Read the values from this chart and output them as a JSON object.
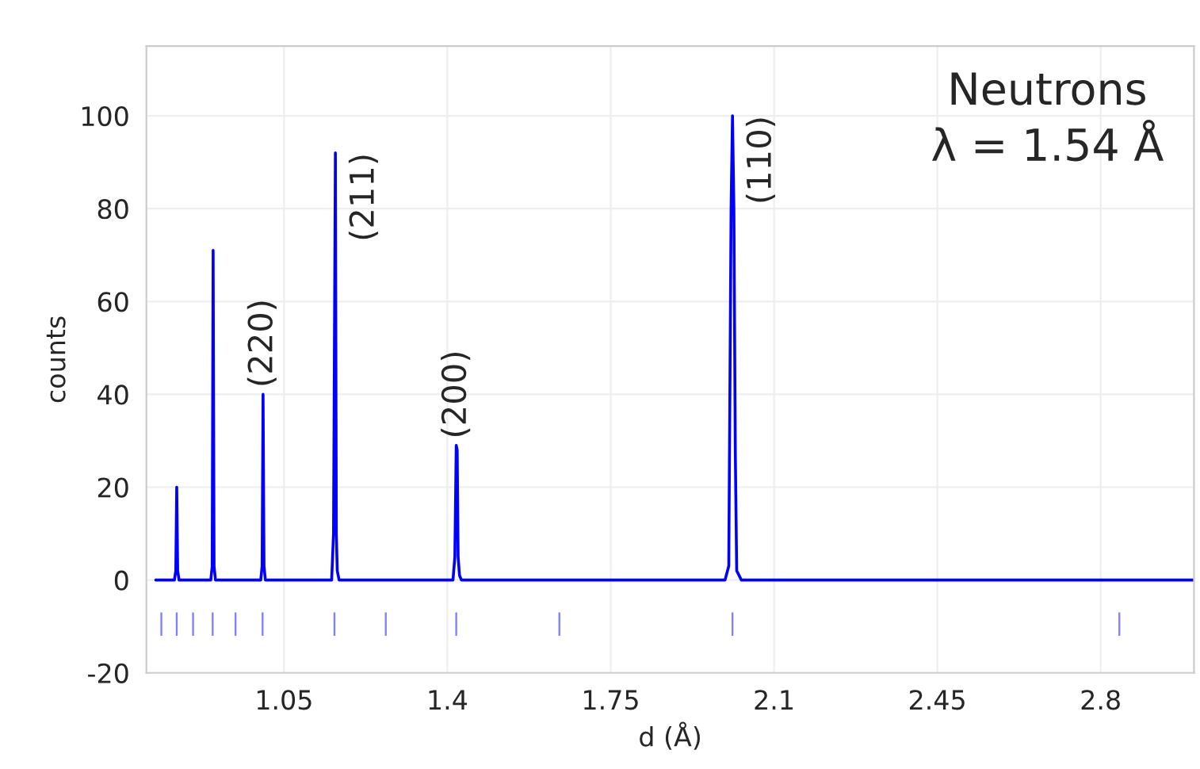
{
  "chart_data": {
    "type": "line",
    "xlabel": "d (Å)",
    "ylabel": "counts",
    "xlim": [
      0.755,
      3.0
    ],
    "xticks": [
      1.05,
      1.4,
      1.75,
      2.1,
      2.45,
      2.8
    ],
    "ylim": [
      -20,
      115
    ],
    "yticks": [
      -20,
      0,
      20,
      40,
      60,
      80,
      100
    ],
    "grid": true,
    "series": [
      {
        "color": "#0000ff",
        "x": [
          0.775,
          0.815,
          0.818,
          0.82,
          0.822,
          0.825,
          0.893,
          0.896,
          0.898,
          0.9,
          0.903,
          1.0,
          1.003,
          1.005,
          1.007,
          1.01,
          1.152,
          1.156,
          1.16,
          1.162,
          1.164,
          1.168,
          1.412,
          1.416,
          1.419,
          1.421,
          1.423,
          1.426,
          1.43,
          1.995,
          2.003,
          2.008,
          2.011,
          2.014,
          2.017,
          2.02,
          2.03,
          3.0
        ],
        "values": [
          0,
          0,
          2,
          20,
          2,
          0,
          0,
          3,
          71,
          3,
          0,
          0,
          3,
          40,
          3,
          0,
          0,
          10,
          92,
          10,
          2,
          0,
          0,
          5,
          29,
          28,
          5,
          1,
          0,
          0,
          3,
          80,
          100,
          80,
          28,
          2,
          0,
          0
        ]
      },
      {
        "type": "bar",
        "color": "#8080ff",
        "x": [
          0.787,
          0.82,
          0.855,
          0.897,
          0.946,
          1.004,
          1.158,
          1.268,
          1.419,
          1.64,
          2.011,
          2.84
        ],
        "values": [
          5,
          5,
          5,
          5,
          5,
          5,
          5,
          5,
          5,
          5,
          5,
          5
        ],
        "base": [
          -12,
          -12,
          -12,
          -12,
          -12,
          -12,
          -12,
          -12,
          -12,
          -12,
          -12,
          -12
        ]
      }
    ],
    "annotations": [
      {
        "text": "(220)",
        "x": 1.005,
        "y": 40
      },
      {
        "text": "(211)",
        "x": 1.16,
        "y": 92
      },
      {
        "text": "(200)",
        "x": 1.42,
        "y": 29
      },
      {
        "text": "(110)",
        "x": 2.011,
        "y": 100
      },
      "Neutrons\nλ = 1.54 Å"
    ]
  }
}
